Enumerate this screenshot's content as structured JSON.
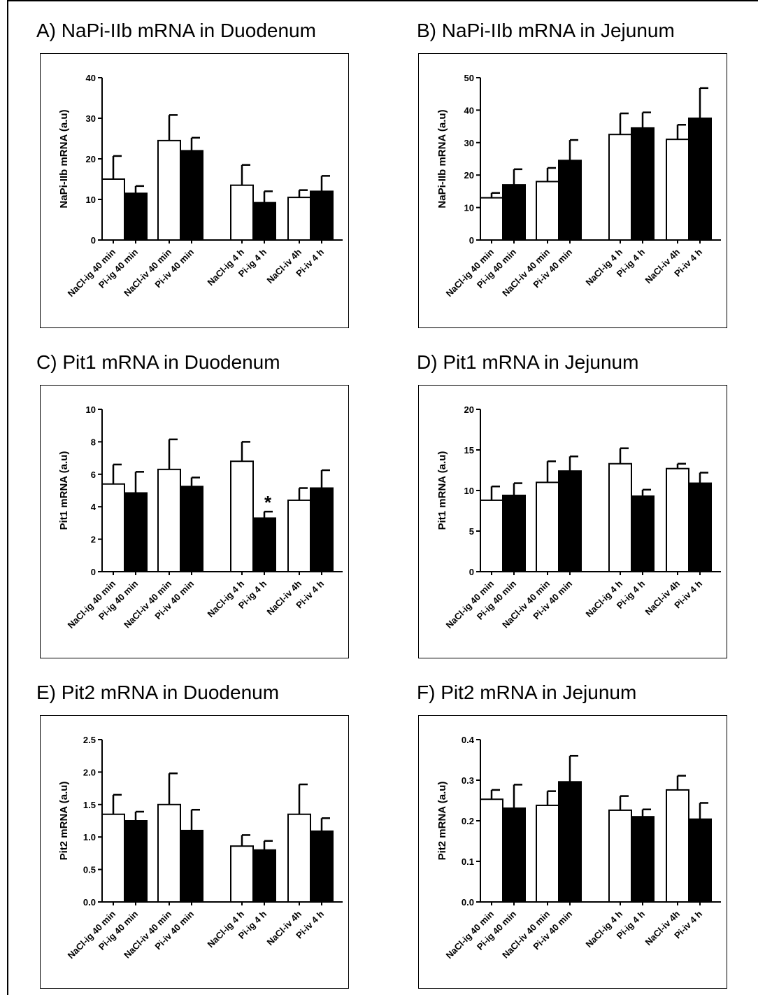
{
  "chart_data": [
    {
      "type": "bar",
      "title": "A) NaPi-IIb mRNA in Duodenum",
      "ylabel": "NaPi-IIb mRNA (a.u)",
      "ylim": [
        0,
        40
      ],
      "yticks": [
        "0",
        "10",
        "20",
        "30",
        "40"
      ],
      "categories": [
        "NaCl-ig 40 min",
        "Pi-ig 40 min",
        "NaCl-iv 40 min",
        "Pi-iv 40 min",
        "NaCl-ig 4 h",
        "Pi-ig 4 h",
        "NaCl-iv 4h",
        "Pi-iv 4 h"
      ],
      "fills": [
        "white",
        "black",
        "white",
        "black",
        "white",
        "black",
        "white",
        "black"
      ],
      "values": [
        15,
        11.5,
        24.5,
        22,
        13.5,
        9.2,
        10.5,
        12
      ],
      "errors": [
        5.7,
        1.8,
        6.3,
        3.2,
        5,
        2.8,
        1.8,
        3.8
      ],
      "annotations": []
    },
    {
      "type": "bar",
      "title": "B) NaPi-IIb mRNA in Jejunum",
      "ylabel": "NaPi-IIb mRNA (a.u)",
      "ylim": [
        0,
        50
      ],
      "yticks": [
        "0",
        "10",
        "20",
        "30",
        "40",
        "50"
      ],
      "categories": [
        "NaCl-ig 40 min",
        "Pi-ig 40 min",
        "NaCl-iv 40 min",
        "Pi-iv 40 min",
        "NaCl-ig 4 h",
        "Pi-ig 4 h",
        "NaCl-iv 4h",
        "Pi-iv 4 h"
      ],
      "fills": [
        "white",
        "black",
        "white",
        "black",
        "white",
        "black",
        "white",
        "black"
      ],
      "values": [
        13,
        17,
        18,
        24.5,
        32.5,
        34.5,
        31,
        37.5
      ],
      "errors": [
        1.5,
        4.8,
        4.2,
        6.3,
        6.5,
        4.8,
        4.5,
        9.3
      ],
      "annotations": []
    },
    {
      "type": "bar",
      "title": "C) Pit1 mRNA in Duodenum",
      "ylabel": "Pit1 mRNA (a.u)",
      "ylim": [
        0,
        10
      ],
      "yticks": [
        "0",
        "2",
        "4",
        "6",
        "8",
        "10"
      ],
      "categories": [
        "NaCl-ig 40 min",
        "Pi-ig 40 min",
        "NaCl-iv 40 min",
        "Pi-iv 40 min",
        "NaCl-ig 4 h",
        "Pi-ig 4 h",
        "NaCl-iv 4h",
        "Pi-iv 4 h"
      ],
      "fills": [
        "white",
        "black",
        "white",
        "black",
        "white",
        "black",
        "white",
        "black"
      ],
      "values": [
        5.4,
        4.85,
        6.3,
        5.25,
        6.8,
        3.3,
        4.4,
        5.15
      ],
      "errors": [
        1.2,
        1.3,
        1.85,
        0.55,
        1.2,
        0.4,
        0.75,
        1.1
      ],
      "annotations": [
        {
          "index": 5,
          "text": "*"
        }
      ]
    },
    {
      "type": "bar",
      "title": "D) Pit1 mRNA in Jejunum",
      "ylabel": "Pit1 mRNA (a.u)",
      "ylim": [
        0,
        20
      ],
      "yticks": [
        "0",
        "5",
        "10",
        "15",
        "20"
      ],
      "categories": [
        "NaCl-ig 40 min",
        "Pi-ig 40 min",
        "NaCl-iv 40 min",
        "Pi-iv 40 min",
        "NaCl-ig 4 h",
        "Pi-ig 4 h",
        "NaCl-iv 4h",
        "Pi-iv 4 h"
      ],
      "fills": [
        "white",
        "black",
        "white",
        "black",
        "white",
        "black",
        "white",
        "black"
      ],
      "values": [
        8.8,
        9.4,
        11,
        12.4,
        13.3,
        9.3,
        12.7,
        10.9
      ],
      "errors": [
        1.7,
        1.5,
        2.6,
        1.8,
        1.9,
        0.8,
        0.6,
        1.3
      ],
      "annotations": []
    },
    {
      "type": "bar",
      "title": "E) Pit2 mRNA in Duodenum",
      "ylabel": "Pit2 mRNA (a.u)",
      "ylim": [
        0,
        2.5
      ],
      "yticks": [
        "0.0",
        "0.5",
        "1.0",
        "1.5",
        "2.0",
        "2.5"
      ],
      "categories": [
        "NaCl-ig 40 min",
        "Pi-ig 40 min",
        "NaCl-iv 40 min",
        "Pi-iv 40 min",
        "NaCl-ig 4 h",
        "Pi-ig 4 h",
        "NaCl-iv 4h",
        "Pi-iv 4 h"
      ],
      "fills": [
        "white",
        "black",
        "white",
        "black",
        "white",
        "black",
        "white",
        "black"
      ],
      "values": [
        1.35,
        1.25,
        1.5,
        1.1,
        0.86,
        0.8,
        1.35,
        1.09
      ],
      "errors": [
        0.3,
        0.14,
        0.48,
        0.32,
        0.17,
        0.14,
        0.46,
        0.2
      ],
      "annotations": []
    },
    {
      "type": "bar",
      "title": "F) Pit2 mRNA in Jejunum",
      "ylabel": "Pit2 mRNA (a.u)",
      "ylim": [
        0,
        0.4
      ],
      "yticks": [
        "0.0",
        "0.1",
        "0.2",
        "0.3",
        "0.4"
      ],
      "categories": [
        "NaCl-ig 40 min",
        "Pi-ig 40 min",
        "NaCl-iv 40 min",
        "Pi-iv 40 min",
        "NaCl-ig 4 h",
        "Pi-ig 4 h",
        "NaCl-iv 4h",
        "Pi-iv 4 h"
      ],
      "fills": [
        "white",
        "black",
        "white",
        "black",
        "white",
        "black",
        "white",
        "black"
      ],
      "values": [
        0.253,
        0.231,
        0.238,
        0.296,
        0.226,
        0.21,
        0.276,
        0.204
      ],
      "errors": [
        0.023,
        0.058,
        0.035,
        0.064,
        0.035,
        0.018,
        0.035,
        0.04
      ],
      "annotations": []
    }
  ]
}
